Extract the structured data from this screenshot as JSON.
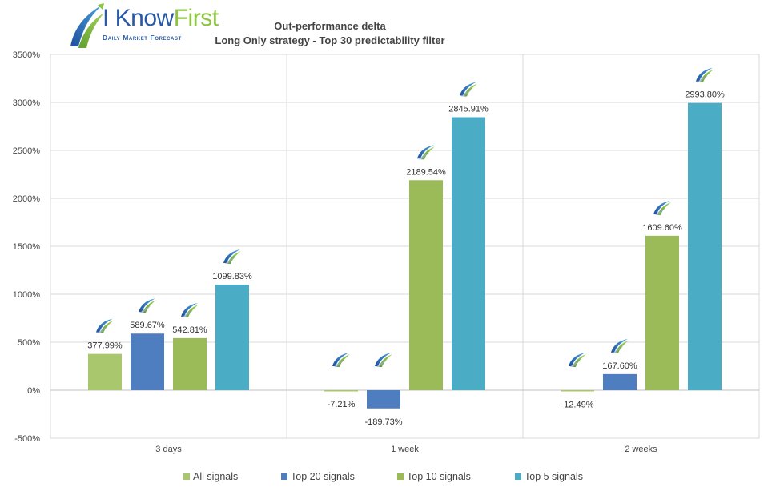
{
  "brand": {
    "name_part1": "I Know",
    "name_part2": "First",
    "tagline": "Daily Market Forecast"
  },
  "chart_data": {
    "type": "bar",
    "title": "Out-performance delta",
    "subtitle": "Long Only strategy - Top 30 predictability filter",
    "categories": [
      "3 days",
      "1 week",
      "2 weeks"
    ],
    "series": [
      {
        "name": "All signals",
        "color": "#a9c86e",
        "values": [
          377.99,
          -7.21,
          -12.49
        ],
        "labels": [
          "377.99%",
          "-7.21%",
          "-12.49%"
        ]
      },
      {
        "name": "Top 20 signals",
        "color": "#4e7ebf",
        "values": [
          589.67,
          -189.73,
          167.6
        ],
        "labels": [
          "589.67%",
          "-189.73%",
          "167.60%"
        ]
      },
      {
        "name": "Top 10 signals",
        "color": "#9bbb59",
        "values": [
          542.81,
          2189.54,
          1609.6
        ],
        "labels": [
          "542.81%",
          "2189.54%",
          "1609.60%"
        ]
      },
      {
        "name": "Top 5 signals",
        "color": "#4bacc6",
        "values": [
          1099.83,
          2845.91,
          2993.8
        ],
        "labels": [
          "1099.83%",
          "2845.91%",
          "2993.80%"
        ]
      }
    ],
    "ylim": [
      -500,
      3500
    ],
    "yticks": [
      -500,
      0,
      500,
      1000,
      1500,
      2000,
      2500,
      3000,
      3500
    ],
    "ytick_labels": [
      "-500%",
      "0%",
      "500%",
      "1000%",
      "1500%",
      "2000%",
      "2500%",
      "3000%",
      "3500%"
    ],
    "grid": true,
    "legend_position": "bottom"
  }
}
